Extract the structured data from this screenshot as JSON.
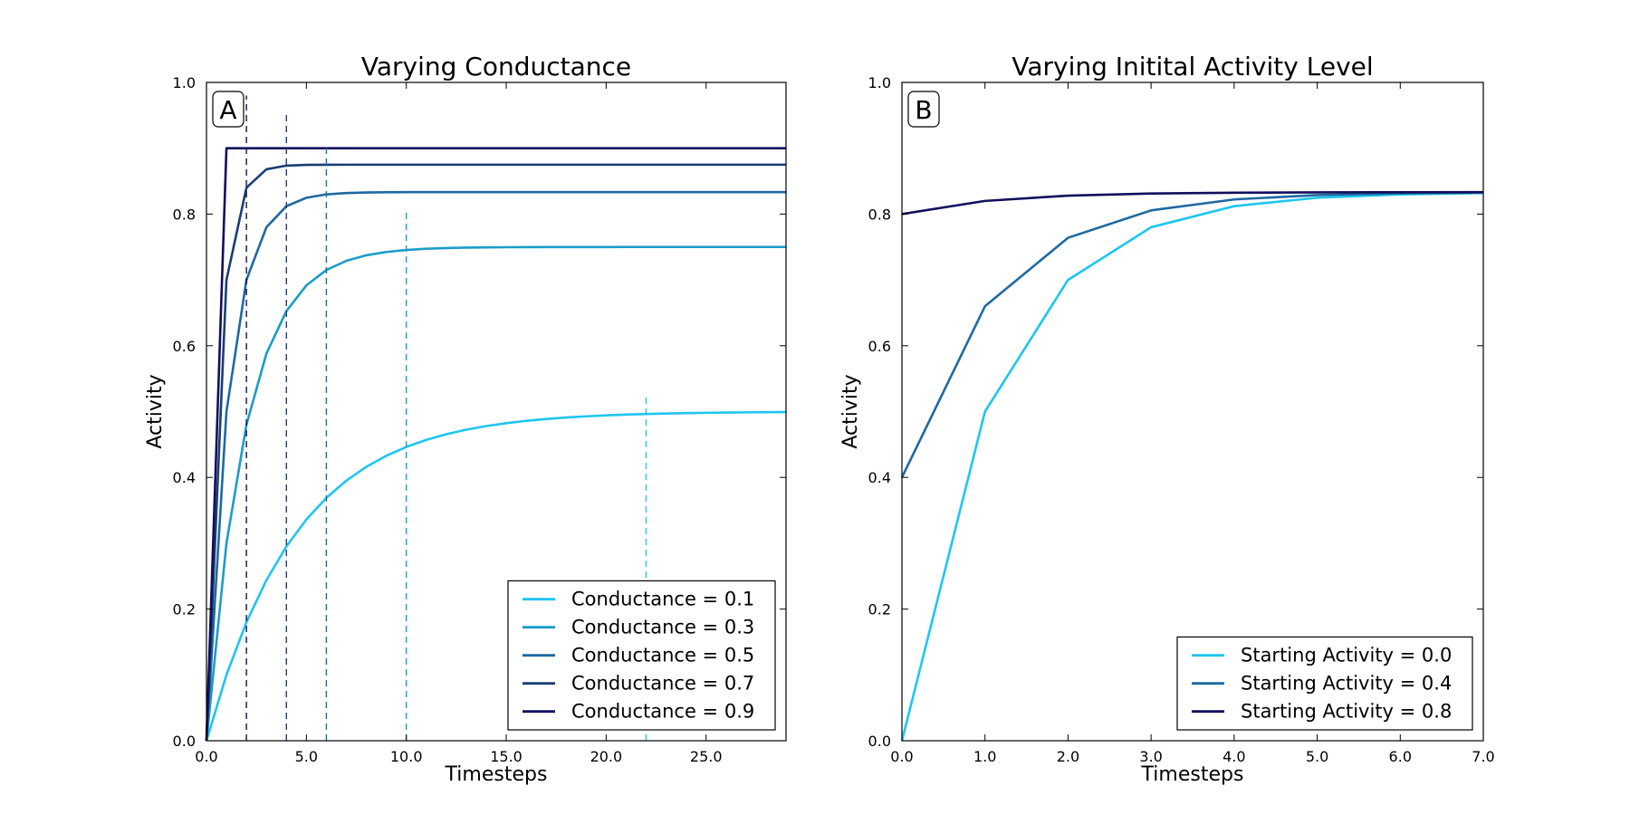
{
  "chart_data": [
    {
      "type": "line",
      "title": "Varying Conductance",
      "panel_label": "A",
      "xlabel": "Timesteps",
      "ylabel": "Activity",
      "xlim": [
        0,
        29
      ],
      "ylim": [
        0,
        1.0
      ],
      "xticks": [
        0,
        5,
        10,
        15,
        20,
        25
      ],
      "xtick_labels": [
        "0.0",
        "5.0",
        "10.0",
        "15.0",
        "20.0",
        "25.0"
      ],
      "yticks": [
        0,
        0.2,
        0.4,
        0.6,
        0.8,
        1.0
      ],
      "ytick_labels": [
        "0.0",
        "0.2",
        "0.4",
        "0.6",
        "0.8",
        "1.0"
      ],
      "grid": false,
      "legend_position": "lower-right",
      "series": [
        {
          "name": "Conductance = 0.1",
          "color": "#1ec6ef",
          "conductance": 0.1,
          "start": 0.0,
          "timesteps": 29
        },
        {
          "name": "Conductance = 0.3",
          "color": "#1b9cc8",
          "conductance": 0.3,
          "start": 0.0,
          "timesteps": 29
        },
        {
          "name": "Conductance = 0.5",
          "color": "#1d6aa1",
          "conductance": 0.5,
          "start": 0.0,
          "timesteps": 29
        },
        {
          "name": "Conductance = 0.7",
          "color": "#1a3e73",
          "conductance": 0.7,
          "start": 0.0,
          "timesteps": 29
        },
        {
          "name": "Conductance = 0.9",
          "color": "#110f5c",
          "conductance": 0.9,
          "start": 0.0,
          "timesteps": 29
        }
      ],
      "vlines": [
        {
          "x": 2,
          "y": 0.98,
          "color": "#110f5c"
        },
        {
          "x": 4,
          "y": 0.955,
          "color": "#1a3e73"
        },
        {
          "x": 6,
          "y": 0.902,
          "color": "#1d6aa1"
        },
        {
          "x": 10,
          "y": 0.803,
          "color": "#1b9cc8"
        },
        {
          "x": 22,
          "y": 0.522,
          "color": "#1ec6ef"
        }
      ]
    },
    {
      "type": "line",
      "title": "Varying Initital Activity Level",
      "panel_label": "B",
      "xlabel": "Timesteps",
      "ylabel": "Activity",
      "xlim": [
        0,
        7
      ],
      "ylim": [
        0,
        1.0
      ],
      "xticks": [
        0,
        1,
        2,
        3,
        4,
        5,
        6,
        7
      ],
      "xtick_labels": [
        "0.0",
        "1.0",
        "2.0",
        "3.0",
        "4.0",
        "5.0",
        "6.0",
        "7.0"
      ],
      "yticks": [
        0,
        0.2,
        0.4,
        0.6,
        0.8,
        1.0
      ],
      "ytick_labels": [
        "0.0",
        "0.2",
        "0.4",
        "0.6",
        "0.8",
        "1.0"
      ],
      "grid": false,
      "legend_position": "lower-right",
      "series": [
        {
          "name": "Starting Activity = 0.0",
          "color": "#1ec6ef",
          "conductance": 0.5,
          "start": 0.0,
          "timesteps": 7
        },
        {
          "name": "Starting Activity = 0.4",
          "color": "#1d6aa1",
          "conductance": 0.5,
          "start": 0.4,
          "timesteps": 7
        },
        {
          "name": "Starting Activity = 0.8",
          "color": "#110f5c",
          "conductance": 0.5,
          "start": 0.8,
          "timesteps": 7
        }
      ],
      "vlines": []
    }
  ]
}
